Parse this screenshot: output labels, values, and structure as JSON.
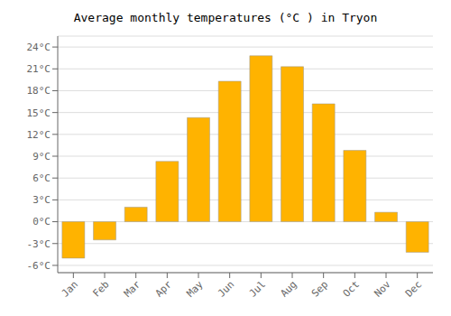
{
  "chart_data": {
    "type": "bar",
    "title": "Average monthly temperatures (°C ) in Tryon",
    "categories": [
      "Jan",
      "Feb",
      "Mar",
      "Apr",
      "May",
      "Jun",
      "Jul",
      "Aug",
      "Sep",
      "Oct",
      "Nov",
      "Dec"
    ],
    "values": [
      -5.0,
      -2.5,
      2.0,
      8.3,
      14.3,
      19.3,
      22.8,
      21.3,
      16.2,
      9.8,
      1.3,
      -4.2
    ],
    "color": "#FFB300",
    "ylim": [
      -7,
      25.5
    ],
    "yticks": [
      {
        "value": -6,
        "label": "-6°C"
      },
      {
        "value": -3,
        "label": "-3°C"
      },
      {
        "value": 0,
        "label": "0°C"
      },
      {
        "value": 3,
        "label": "3°C"
      },
      {
        "value": 6,
        "label": "6°C"
      },
      {
        "value": 9,
        "label": "9°C"
      },
      {
        "value": 12,
        "label": "12°C"
      },
      {
        "value": 15,
        "label": "15°C"
      },
      {
        "value": 18,
        "label": "18°C"
      },
      {
        "value": 21,
        "label": "21°C"
      },
      {
        "value": 24,
        "label": "24°C"
      }
    ],
    "grid": true
  }
}
